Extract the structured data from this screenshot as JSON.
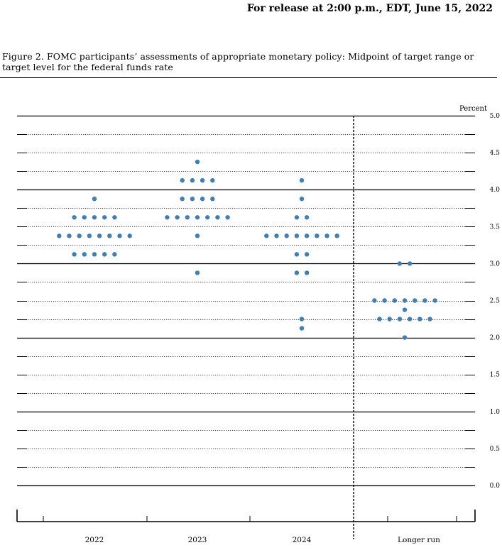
{
  "header": {
    "release": "For release at 2:00 p.m., EDT, June 15, 2022"
  },
  "figure": {
    "caption": "Figure 2.  FOMC participants’ assessments of appropriate monetary policy:  Midpoint of target range or target level for the federal funds rate"
  },
  "chart_data": {
    "type": "scatter",
    "ylabel": "Percent",
    "ylim": [
      0,
      5.0
    ],
    "yticks": [
      "0.0",
      "0.5",
      "1.0",
      "1.5",
      "2.0",
      "2.5",
      "3.0",
      "3.5",
      "4.0",
      "4.5",
      "5.0"
    ],
    "categories": [
      "2022",
      "2023",
      "2024",
      "Longer run"
    ],
    "dot_color": "#3f7fb5",
    "groups": [
      {
        "category": "2022",
        "points": [
          {
            "y": 3.875,
            "count": 1
          },
          {
            "y": 3.625,
            "count": 5
          },
          {
            "y": 3.375,
            "count": 8
          },
          {
            "y": 3.125,
            "count": 5
          }
        ]
      },
      {
        "category": "2023",
        "points": [
          {
            "y": 4.375,
            "count": 1
          },
          {
            "y": 4.125,
            "count": 4
          },
          {
            "y": 3.875,
            "count": 4
          },
          {
            "y": 3.625,
            "count": 7
          },
          {
            "y": 3.375,
            "count": 1
          },
          {
            "y": 2.875,
            "count": 1
          }
        ]
      },
      {
        "category": "2024",
        "points": [
          {
            "y": 4.125,
            "count": 1
          },
          {
            "y": 3.875,
            "count": 1
          },
          {
            "y": 3.625,
            "count": 2
          },
          {
            "y": 3.375,
            "count": 8
          },
          {
            "y": 3.125,
            "count": 2
          },
          {
            "y": 2.875,
            "count": 2
          },
          {
            "y": 2.25,
            "count": 1
          },
          {
            "y": 2.125,
            "count": 1
          }
        ]
      },
      {
        "category": "Longer run",
        "points": [
          {
            "y": 3.0,
            "count": 2
          },
          {
            "y": 2.5,
            "count": 7
          },
          {
            "y": 2.375,
            "count": 1
          },
          {
            "y": 2.25,
            "count": 6
          },
          {
            "y": 2.0,
            "count": 1
          }
        ]
      }
    ]
  }
}
